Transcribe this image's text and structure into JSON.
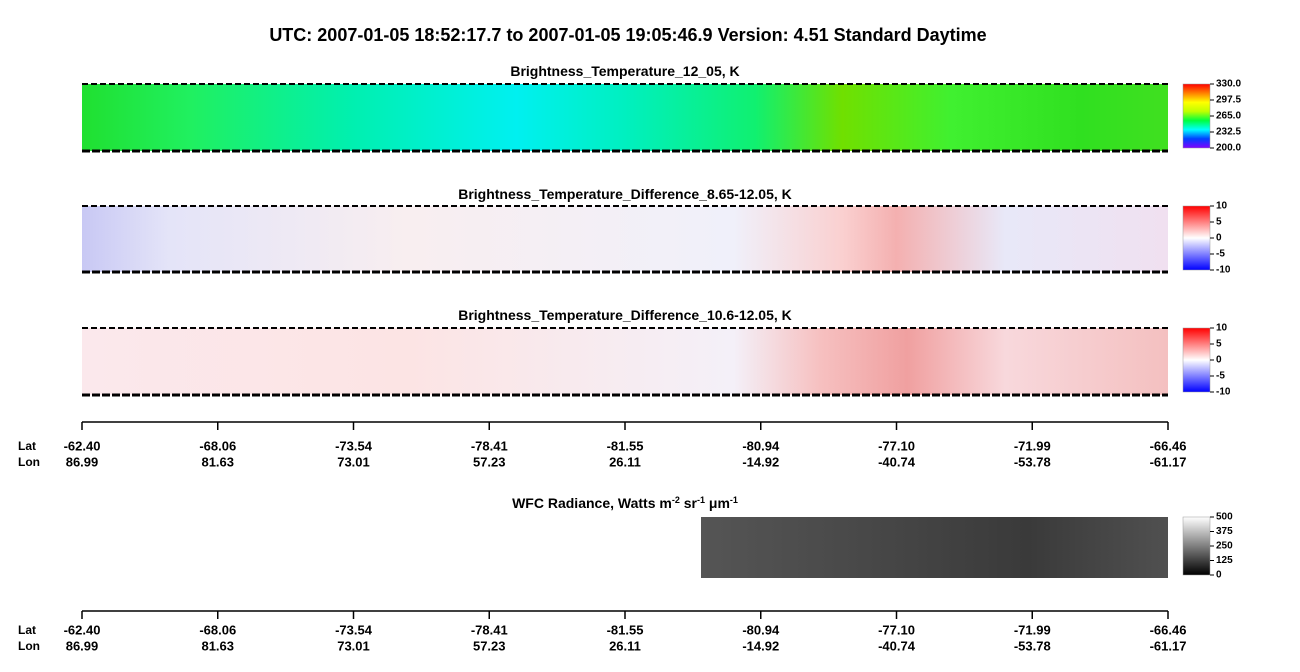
{
  "title": "UTC:  2007-01-05   18:52:17.7  to  2007-01-05   19:05:46.9    Version: 4.51  Standard Daytime",
  "axis": {
    "lat_name": "Lat",
    "lon_name": "Lon",
    "lat": [
      "-62.40",
      "-68.06",
      "-73.54",
      "-78.41",
      "-81.55",
      "-80.94",
      "-77.10",
      "-71.99",
      "-66.46"
    ],
    "lon": [
      "86.99",
      "81.63",
      "73.01",
      "57.23",
      "26.11",
      "-14.92",
      "-40.74",
      "-53.78",
      "-61.17"
    ]
  },
  "chart_data": [
    {
      "type": "heatmap",
      "title": [
        "Brightness_Temperature_12_05, K"
      ],
      "clim": [
        200,
        330
      ],
      "cticks": [
        {
          "value": 330,
          "label": "330.0"
        },
        {
          "value": 297.5,
          "label": "297.5"
        },
        {
          "value": 265,
          "label": "265.0"
        },
        {
          "value": 232.5,
          "label": "232.5"
        },
        {
          "value": 200,
          "label": "200.0"
        }
      ],
      "colors": [
        "#8000ff",
        "#0040ff",
        "#00ffff",
        "#00ff40",
        "#c0ff00",
        "#ffff00",
        "#ff8000",
        "#ff0000"
      ]
    },
    {
      "type": "heatmap",
      "title": [
        "Brightness_Temperature_Difference_8.65-12.05, K"
      ],
      "clim": [
        -10,
        10
      ],
      "cticks": [
        10,
        5,
        0,
        -5,
        -10
      ],
      "colors": [
        "#0000ff",
        "#ffffff",
        "#ff0000"
      ]
    },
    {
      "type": "heatmap",
      "title": [
        "Brightness_Temperature_Difference_10.6-12.05, K"
      ],
      "clim": [
        -10,
        10
      ],
      "cticks": [
        10,
        5,
        0,
        -5,
        -10
      ],
      "colors": [
        "#0000ff",
        "#ffffff",
        "#ff0000"
      ]
    },
    {
      "type": "heatmap",
      "title": [
        "WFC Radiance, Watts m",
        "-2",
        " sr",
        "-1",
        " μm",
        "-1"
      ],
      "clim": [
        0,
        500
      ],
      "cticks": [
        500,
        375,
        250,
        125,
        0
      ],
      "colors": [
        "#000000",
        "#ffffff"
      ]
    }
  ]
}
